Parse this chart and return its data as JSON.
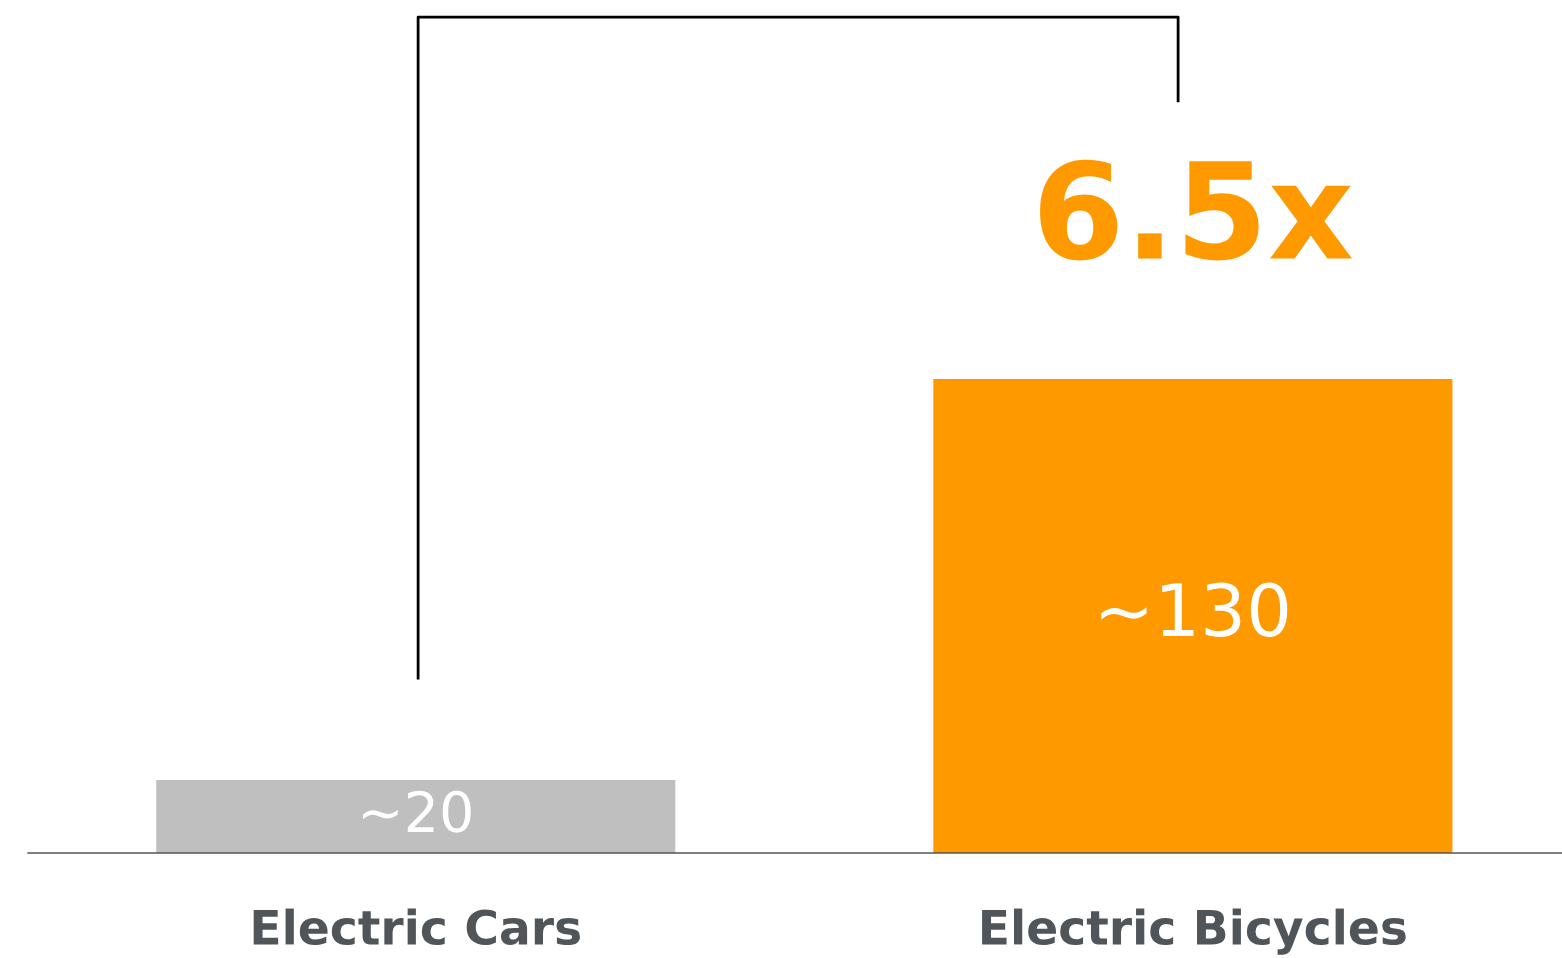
{
  "chart_data": {
    "type": "bar",
    "categories": [
      "Electric Cars",
      "Electric Bicycles"
    ],
    "values": [
      20,
      130
    ],
    "colors": [
      "#bfbfbf",
      "#ff9900"
    ],
    "value_labels": [
      "~20",
      "~130"
    ],
    "annotations": [
      "6.5x"
    ],
    "grid": false,
    "legend": false
  }
}
